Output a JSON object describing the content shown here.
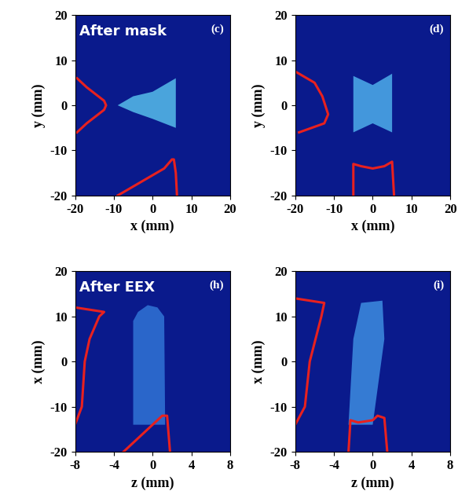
{
  "chart_data": [
    {
      "type": "image",
      "annotation": "After mask",
      "panel_label": "(c)",
      "xlabel": "x (mm)",
      "ylabel": "y (mm)",
      "xlim": [
        -20,
        20
      ],
      "ylim": [
        -20,
        20
      ],
      "xticks": [
        -20,
        -10,
        0,
        10,
        20
      ],
      "yticks": [
        -20,
        -10,
        0,
        10,
        20
      ],
      "background_color": "#0a1a8c",
      "beam": {
        "x": [
          -9,
          -5,
          0,
          6,
          6,
          0,
          -5
        ],
        "y": [
          0,
          2,
          3,
          6,
          -5,
          -3,
          -1.5
        ],
        "color": "#52b4e6"
      },
      "series": [
        {
          "x": [
            -19.5,
            -17,
            -14,
            -12.5,
            -12,
            -12.5,
            -14,
            -17,
            -19.5
          ],
          "values": [
            -6,
            -4,
            -2,
            -1,
            0,
            1,
            2,
            4,
            6
          ],
          "color": "#e8211f"
        },
        {
          "x": [
            -9,
            -6,
            -3,
            0,
            3,
            5,
            5.5,
            6,
            6.3
          ],
          "values": [
            -20,
            -18.5,
            -17,
            -15.5,
            -14,
            -12,
            -12,
            -15,
            -20
          ],
          "color": "#e8211f"
        }
      ]
    },
    {
      "type": "image",
      "panel_label": "(d)",
      "xlabel": "x (mm)",
      "ylabel": "y (mm)",
      "xlim": [
        -20,
        20
      ],
      "ylim": [
        -20,
        20
      ],
      "xticks": [
        -20,
        -10,
        0,
        10,
        20
      ],
      "yticks": [
        -20,
        -10,
        0,
        10,
        20
      ],
      "background_color": "#0a1a8c",
      "beam": {
        "x": [
          -5,
          0,
          5,
          5,
          0,
          -5
        ],
        "y": [
          6.5,
          4.5,
          7,
          -6,
          -4,
          -6
        ],
        "color": "#4aa6e6"
      },
      "series": [
        {
          "x": [
            -20,
            -15,
            -13,
            -11.5,
            -12.5,
            -19
          ],
          "values": [
            7.5,
            5,
            2,
            -2,
            -4,
            -6
          ],
          "color": "#e8211f"
        },
        {
          "x": [
            -5,
            -5,
            -3,
            0,
            3,
            5,
            5.5
          ],
          "values": [
            -20,
            -13,
            -13.5,
            -14,
            -13.5,
            -12.5,
            -20
          ],
          "color": "#e8211f"
        }
      ]
    },
    {
      "type": "image",
      "annotation": "After EEX",
      "panel_label": "(h)",
      "xlabel": "z (mm)",
      "ylabel": "x (mm)",
      "xlim": [
        -8,
        8
      ],
      "ylim": [
        -20,
        20
      ],
      "xticks": [
        -8,
        -4,
        0,
        4,
        8
      ],
      "yticks": [
        -20,
        -10,
        0,
        10,
        20
      ],
      "background_color": "#0a1a8c",
      "beam": {
        "x": [
          -2,
          -2,
          -1.5,
          -0.5,
          0.5,
          1.2,
          1.3
        ],
        "y": [
          -14,
          9,
          11,
          12.5,
          12,
          10,
          -14
        ],
        "color": "#2e6fd2"
      },
      "series": [
        {
          "x": [
            -8,
            -5,
            -5.5,
            -6.5,
            -7,
            -7.3,
            -8
          ],
          "values": [
            12,
            11,
            10,
            5,
            0,
            -10,
            -14
          ],
          "color": "#e8211f"
        },
        {
          "x": [
            -3,
            0,
            1,
            1.5,
            1.8
          ],
          "values": [
            -20,
            -14,
            -12,
            -12,
            -20
          ],
          "color": "#e8211f"
        }
      ]
    },
    {
      "type": "image",
      "panel_label": "(i)",
      "xlabel": "z (mm)",
      "ylabel": "x (mm)",
      "xlim": [
        -8,
        8
      ],
      "ylim": [
        -20,
        20
      ],
      "xticks": [
        -8,
        -4,
        0,
        4,
        8
      ],
      "yticks": [
        -20,
        -10,
        0,
        10,
        20
      ],
      "background_color": "#0a1a8c",
      "beam": {
        "x": [
          -2.5,
          -2,
          -1.2,
          1,
          1.2,
          0
        ],
        "y": [
          -14,
          5,
          13,
          13.5,
          5,
          -14
        ],
        "color": "#3a86dc"
      },
      "series": [
        {
          "x": [
            -8,
            -5,
            -5.3,
            -6.5,
            -7,
            -8
          ],
          "values": [
            14,
            13,
            10,
            0,
            -10,
            -14
          ],
          "color": "#e8211f"
        },
        {
          "x": [
            -2.5,
            -2.3,
            -1.5,
            0,
            0.5,
            1.2,
            1.5
          ],
          "values": [
            -20,
            -13,
            -13.5,
            -13,
            -12,
            -12.5,
            -20
          ],
          "color": "#e8211f"
        }
      ]
    }
  ]
}
